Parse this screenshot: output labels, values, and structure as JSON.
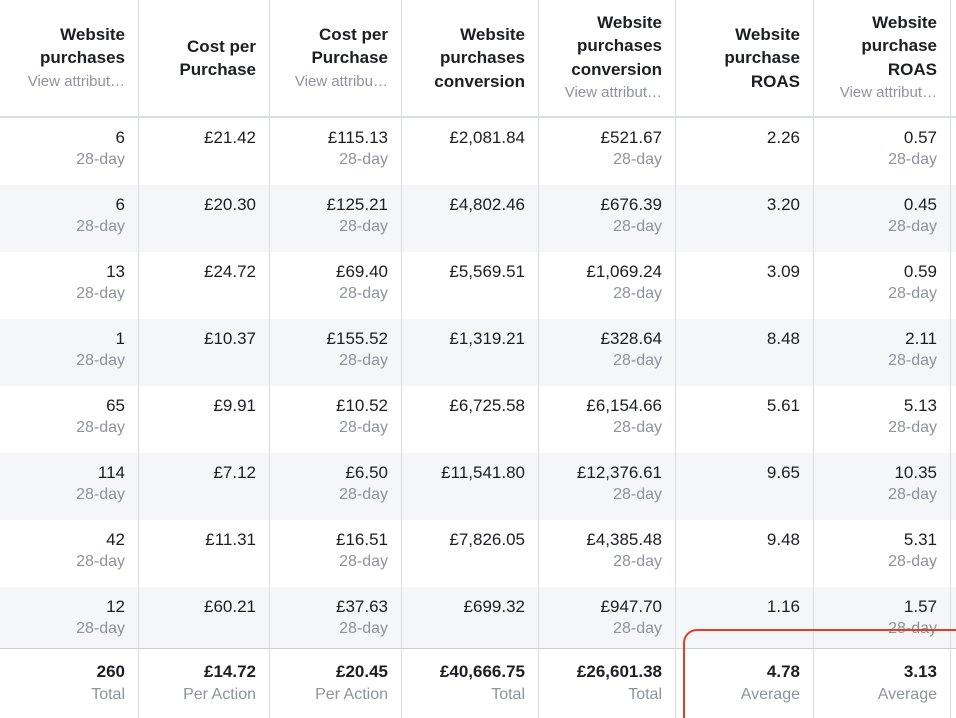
{
  "table": {
    "headers": [
      {
        "title": "Website purchases",
        "subtitle": "View attribut…"
      },
      {
        "title": "Cost per Purchase"
      },
      {
        "title": "Cost per Purchase",
        "subtitle": "View attribu…"
      },
      {
        "title": "Website purchases conversion"
      },
      {
        "title": "Website purchases conversion",
        "subtitle": "View attribut…"
      },
      {
        "title": "Website purchase ROAS"
      },
      {
        "title": "Website purchase ROAS",
        "subtitle": "View attribut…"
      }
    ],
    "rows": [
      [
        {
          "value": "6",
          "note": "28-day"
        },
        {
          "value": "£21.42"
        },
        {
          "value": "£115.13",
          "note": "28-day"
        },
        {
          "value": "£2,081.84"
        },
        {
          "value": "£521.67",
          "note": "28-day"
        },
        {
          "value": "2.26"
        },
        {
          "value": "0.57",
          "note": "28-day"
        }
      ],
      [
        {
          "value": "6",
          "note": "28-day"
        },
        {
          "value": "£20.30"
        },
        {
          "value": "£125.21",
          "note": "28-day"
        },
        {
          "value": "£4,802.46"
        },
        {
          "value": "£676.39",
          "note": "28-day"
        },
        {
          "value": "3.20"
        },
        {
          "value": "0.45",
          "note": "28-day"
        }
      ],
      [
        {
          "value": "13",
          "note": "28-day"
        },
        {
          "value": "£24.72"
        },
        {
          "value": "£69.40",
          "note": "28-day"
        },
        {
          "value": "£5,569.51"
        },
        {
          "value": "£1,069.24",
          "note": "28-day"
        },
        {
          "value": "3.09"
        },
        {
          "value": "0.59",
          "note": "28-day"
        }
      ],
      [
        {
          "value": "1",
          "note": "28-day"
        },
        {
          "value": "£10.37"
        },
        {
          "value": "£155.52",
          "note": "28-day"
        },
        {
          "value": "£1,319.21"
        },
        {
          "value": "£328.64",
          "note": "28-day"
        },
        {
          "value": "8.48"
        },
        {
          "value": "2.11",
          "note": "28-day"
        }
      ],
      [
        {
          "value": "65",
          "note": "28-day"
        },
        {
          "value": "£9.91"
        },
        {
          "value": "£10.52",
          "note": "28-day"
        },
        {
          "value": "£6,725.58"
        },
        {
          "value": "£6,154.66",
          "note": "28-day"
        },
        {
          "value": "5.61"
        },
        {
          "value": "5.13",
          "note": "28-day"
        }
      ],
      [
        {
          "value": "114",
          "note": "28-day"
        },
        {
          "value": "£7.12"
        },
        {
          "value": "£6.50",
          "note": "28-day"
        },
        {
          "value": "£11,541.80"
        },
        {
          "value": "£12,376.61",
          "note": "28-day"
        },
        {
          "value": "9.65"
        },
        {
          "value": "10.35",
          "note": "28-day"
        }
      ],
      [
        {
          "value": "42",
          "note": "28-day"
        },
        {
          "value": "£11.31"
        },
        {
          "value": "£16.51",
          "note": "28-day"
        },
        {
          "value": "£7,826.05"
        },
        {
          "value": "£4,385.48",
          "note": "28-day"
        },
        {
          "value": "9.48"
        },
        {
          "value": "5.31",
          "note": "28-day"
        }
      ],
      [
        {
          "value": "12",
          "note": "28-day"
        },
        {
          "value": "£60.21"
        },
        {
          "value": "£37.63",
          "note": "28-day"
        },
        {
          "value": "£699.32"
        },
        {
          "value": "£947.70",
          "note": "28-day"
        },
        {
          "value": "1.16"
        },
        {
          "value": "1.57",
          "note": "28-day"
        }
      ]
    ],
    "footer": [
      {
        "value": "260",
        "label": "Total"
      },
      {
        "value": "£14.72",
        "label": "Per Action"
      },
      {
        "value": "£20.45",
        "label": "Per Action"
      },
      {
        "value": "£40,666.75",
        "label": "Total"
      },
      {
        "value": "£26,601.38",
        "label": "Total"
      },
      {
        "value": "4.78",
        "label": "Average"
      },
      {
        "value": "3.13",
        "label": "Average"
      }
    ]
  }
}
